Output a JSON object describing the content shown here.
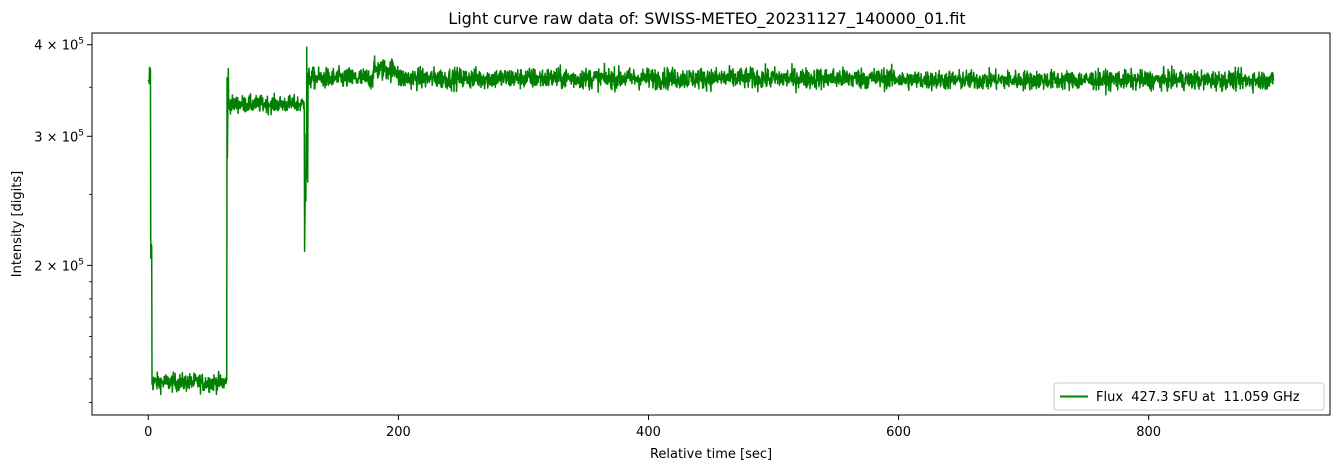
{
  "chart_data": {
    "type": "line",
    "title": "Light curve raw data of: SWISS-METEO_20231127_140000_01.fit",
    "xlabel": "Relative time [sec]",
    "ylabel": "Intensity [digits]",
    "xlim": [
      -45,
      945
    ],
    "ylim": [
      125000,
      415000
    ],
    "yscale": "log",
    "x_ticks": [
      0,
      200,
      400,
      600,
      800
    ],
    "x_tick_labels": [
      "0",
      "200",
      "400",
      "600",
      "800"
    ],
    "y_ticks": [
      200000,
      300000,
      400000
    ],
    "y_tick_labels": [
      {
        "base": "2 × 10",
        "exp": "5"
      },
      {
        "base": "3 × 10",
        "exp": "5"
      },
      {
        "base": "4 × 10",
        "exp": "5"
      }
    ],
    "grid": false,
    "legend_position": "lower-right",
    "series": [
      {
        "name": "Flux  427.3 SFU at  11.059 GHz",
        "color": "#008000",
        "segments": [
          {
            "start": 0,
            "end": 1,
            "mean": 355000,
            "noise": 3000
          },
          {
            "start": 1,
            "end": 2,
            "mean": 370000,
            "noise": 2000
          },
          {
            "start": 2,
            "end": 3,
            "mean": 210000,
            "noise": 5000
          },
          {
            "start": 3,
            "end": 63,
            "mean": 138500,
            "noise": 2000
          },
          {
            "start": 63,
            "end": 65,
            "mean": 330000,
            "noise": 30000
          },
          {
            "start": 65,
            "end": 125,
            "mean": 332000,
            "noise": 4500
          },
          {
            "start": 125,
            "end": 128,
            "mean": 300000,
            "noise": 60000
          },
          {
            "start": 128,
            "end": 180,
            "mean": 360000,
            "noise": 6000
          },
          {
            "start": 180,
            "end": 200,
            "mean": 370000,
            "noise": 6500
          },
          {
            "start": 200,
            "end": 600,
            "mean": 360000,
            "noise": 6000
          },
          {
            "start": 600,
            "end": 900,
            "mean": 358000,
            "noise": 5500
          }
        ]
      }
    ]
  }
}
